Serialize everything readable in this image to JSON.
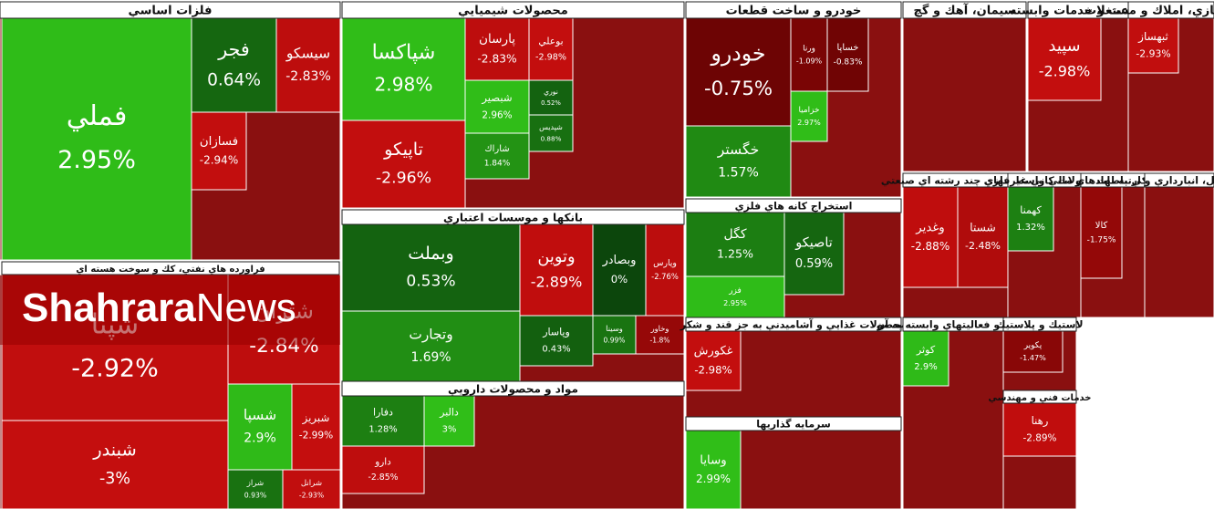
{
  "chart_data": {
    "type": "treemap",
    "watermark": [
      "Shahrara",
      "News"
    ],
    "sectors": [
      {
        "name": "فلزات اساسي",
        "names": [
          "فملي",
          "فجر",
          "سيسكو",
          "فسازان"
        ],
        "values": [
          2.95,
          0.64,
          -2.83,
          -2.94
        ],
        "value_labels": [
          "2.95%",
          "0.64%",
          "-2.83%",
          "-2.94%"
        ]
      },
      {
        "name": "فراورده هاي نفتي، كك و سوخت هسته اي",
        "names": [
          "شپنا",
          "شبندر",
          "شتران",
          "شسپا",
          "شبريز",
          "شراز",
          "شرانل"
        ],
        "values": [
          -2.92,
          -3,
          -2.84,
          2.9,
          -2.99,
          0.93,
          -2.93
        ],
        "value_labels": [
          "-2.92%",
          "-3%",
          "-2.84%",
          "2.9%",
          "-2.99%",
          "0.93%",
          "-2.93%"
        ]
      },
      {
        "name": "محصولات شيميايي",
        "names": [
          "شپاكسا",
          "تاپيكو",
          "پارسان",
          "بوعلي",
          "شبصير",
          "شاراك",
          "نوري",
          "شپديس"
        ],
        "values": [
          2.98,
          -2.96,
          -2.83,
          -2.98,
          2.96,
          1.84,
          0.52,
          0.88
        ],
        "value_labels": [
          "2.98%",
          "-2.96%",
          "-2.83%",
          "-2.98%",
          "2.96%",
          "1.84%",
          "0.52%",
          "0.88%"
        ]
      },
      {
        "name": "بانكها و موسسات اعتباري",
        "names": [
          "وبملت",
          "وتجارت",
          "وتوين",
          "وبصادر",
          "وپارس",
          "وپاسار",
          "وسينا",
          "وخاور"
        ],
        "values": [
          0.53,
          1.69,
          -2.89,
          0,
          -2.76,
          0.43,
          0.99,
          -1.8
        ],
        "value_labels": [
          "0.53%",
          "1.69%",
          "-2.89%",
          "0%",
          "-2.76%",
          "0.43%",
          "0.99%",
          "-1.8%"
        ]
      },
      {
        "name": "مواد و محصولات دارويي",
        "names": [
          "دفارا",
          "دالبر",
          "دارو"
        ],
        "values": [
          1.28,
          3,
          -2.85
        ],
        "value_labels": [
          "1.28%",
          "3%",
          "-2.85%"
        ]
      },
      {
        "name": "خودرو و ساخت قطعات",
        "names": [
          "خودرو",
          "خگستر",
          "ورنا",
          "خساپا",
          "خزاميا"
        ],
        "values": [
          -0.75,
          1.57,
          -1.09,
          -0.83,
          2.97
        ],
        "value_labels": [
          "-0.75%",
          "1.57%",
          "-1.09%",
          "-0.83%",
          "2.97%"
        ]
      },
      {
        "name": "استخراج كانه هاي فلزي",
        "names": [
          "كگل",
          "فزر",
          "تاصيكو"
        ],
        "values": [
          1.25,
          2.95,
          0.59
        ],
        "value_labels": [
          "1.25%",
          "2.95%",
          "0.59%"
        ]
      },
      {
        "name": "محصولات غذايي و آشاميدني به جز قند و شكر",
        "names": [
          "غكورش"
        ],
        "values": [
          -2.98
        ],
        "value_labels": [
          "-2.98%"
        ]
      },
      {
        "name": "سرمايه گذاريها",
        "names": [
          "وسايا"
        ],
        "values": [
          2.99
        ],
        "value_labels": [
          "2.99%"
        ]
      },
      {
        "name": "سيمان، آهك و گچ",
        "names": [],
        "values": [],
        "value_labels": []
      },
      {
        "name": "زراعت و خدمات وابسته",
        "names": [
          "سپيد"
        ],
        "values": [
          -2.98
        ],
        "value_labels": [
          "-2.98%"
        ]
      },
      {
        "name": "انبوه سازي، املاك و مستغلات",
        "names": [
          "ثبهساز"
        ],
        "values": [
          -2.93
        ],
        "value_labels": [
          "-2.93%"
        ]
      },
      {
        "name": "شركتهاي چند رشته اي صنعتي",
        "names": [
          "وغدير",
          "شستا"
        ],
        "values": [
          -2.88,
          -2.48
        ],
        "value_labels": [
          "-2.88%",
          "-2.48%"
        ]
      },
      {
        "name": "محصولات كاني غيرفلزي",
        "names": [
          "كهمنا"
        ],
        "values": [
          1.32
        ],
        "value_labels": [
          "1.32%"
        ]
      },
      {
        "name": "فعاليتهاي كمكي به نهادهاي مالي واسط",
        "names": [
          "كالا"
        ],
        "values": [
          -1.75
        ],
        "value_labels": [
          "-1.75%"
        ]
      },
      {
        "name": "حمل و نقل، انبارداري و ارتباطات",
        "names": [],
        "values": [],
        "value_labels": []
      },
      {
        "name": "رايانه و فعاليتهاي وابسته به آن",
        "names": [
          "كوثر"
        ],
        "values": [
          2.9
        ],
        "value_labels": [
          "2.9%"
        ]
      },
      {
        "name": "لاستيك و پلاستيك",
        "names": [
          "پكوير"
        ],
        "values": [
          -1.47
        ],
        "value_labels": [
          "-1.47%"
        ]
      },
      {
        "name": "خدمات فني و مهندسي",
        "names": [
          "رهنا"
        ],
        "values": [
          -2.89
        ],
        "value_labels": [
          "-2.89%"
        ]
      }
    ]
  }
}
